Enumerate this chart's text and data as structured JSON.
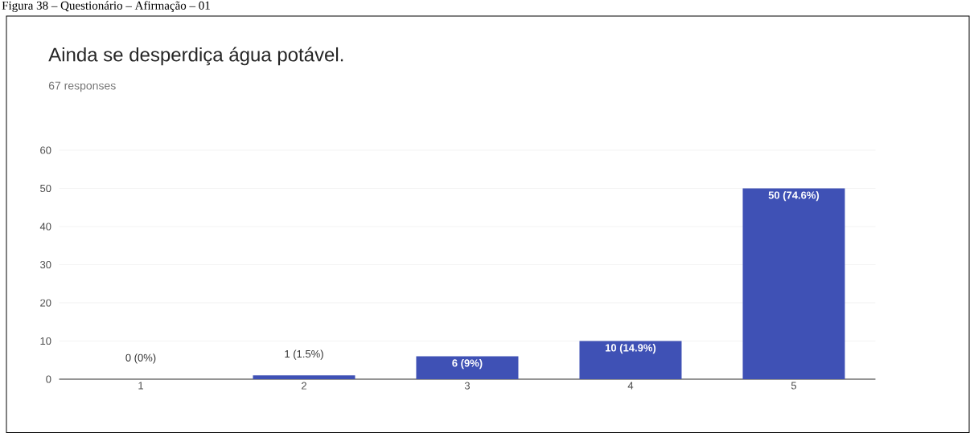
{
  "chart_data": {
    "type": "bar",
    "title": "Ainda se desperdiça água potável.",
    "subtitle": "67 responses",
    "annotations": [
      "Figura 38 – Questionário – Afirmação – 01"
    ],
    "categories": [
      "1",
      "2",
      "3",
      "4",
      "5"
    ],
    "values": [
      0,
      1,
      6,
      10,
      50
    ],
    "value_labels": [
      "0 (0%)",
      "1 (1.5%)",
      "6 (9%)",
      "10 (14.9%)",
      "50 (74.6%)"
    ],
    "color": "#3f51b5",
    "ylim": [
      0,
      60
    ],
    "yticks": [
      0,
      10,
      20,
      30,
      40,
      50,
      60
    ],
    "grid": "y"
  }
}
